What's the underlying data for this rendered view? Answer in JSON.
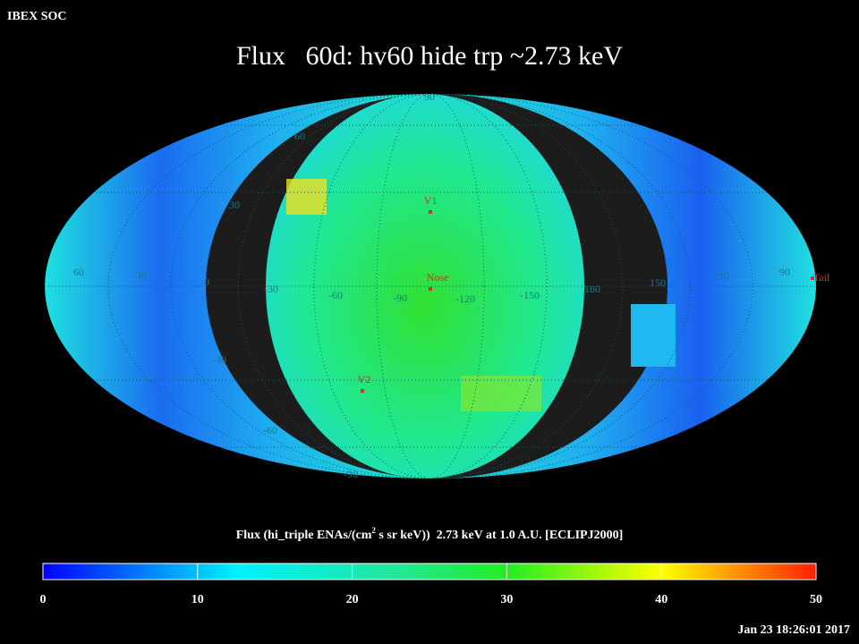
{
  "header": {
    "source": "IBEX SOC",
    "title": "Flux   60d: hv60 hide trp ~2.73 keV"
  },
  "map": {
    "grid_labels": [
      "90",
      "60",
      "30",
      "60",
      "30",
      "0",
      "-30",
      "-60",
      "-90",
      "-120",
      "-150",
      "180",
      "150",
      "120",
      "90",
      "-30",
      "-60",
      "-90"
    ],
    "markers": [
      "V1",
      "Nose",
      "V2",
      "Tail"
    ]
  },
  "colorbar": {
    "label_parts": [
      "Flux (hi_triple ENAs/(cm",
      "2",
      " s sr keV))  2.73 keV at 1.0 A.U. [ECLIPJ2000]"
    ],
    "range": [
      0,
      50
    ],
    "ticks": [
      0,
      10,
      20,
      30,
      40,
      50
    ]
  },
  "footer": {
    "timestamp": "Jan 23 18:26:01 2017"
  }
}
